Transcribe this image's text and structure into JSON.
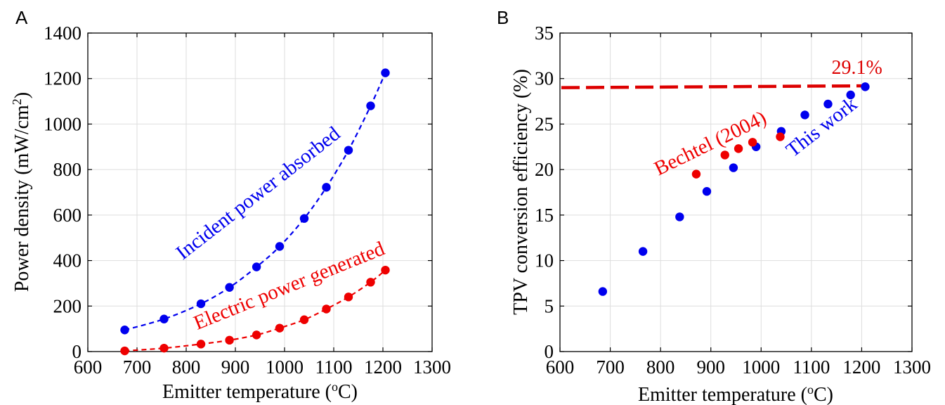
{
  "chart_data": [
    {
      "panel_label": "A",
      "type": "scatter",
      "xlabel_main": "Emitter temperature (",
      "xlabel_sup": "o",
      "xlabel_end": "C)",
      "ylabel_main": "Power density (mW/cm",
      "ylabel_sup": "2",
      "ylabel_end": ")",
      "xlim": [
        600,
        1300
      ],
      "ylim": [
        0,
        1400
      ],
      "xticks": [
        600,
        700,
        800,
        900,
        1000,
        1100,
        1200,
        1300
      ],
      "yticks": [
        0,
        200,
        400,
        600,
        800,
        1000,
        1200,
        1400
      ],
      "grid": true,
      "series": [
        {
          "name": "Incident power absorbed",
          "color": "#0000ee",
          "x": [
            675,
            755,
            830,
            888,
            943,
            990,
            1040,
            1085,
            1130,
            1175,
            1205
          ],
          "y": [
            95,
            143,
            210,
            282,
            372,
            462,
            585,
            722,
            885,
            1080,
            1225
          ]
        },
        {
          "name": "Electric power generated",
          "color": "#ee0000",
          "x": [
            675,
            755,
            830,
            888,
            943,
            990,
            1040,
            1085,
            1130,
            1175,
            1205
          ],
          "y": [
            3,
            15,
            33,
            50,
            73,
            103,
            140,
            187,
            240,
            305,
            358
          ]
        }
      ]
    },
    {
      "panel_label": "B",
      "type": "scatter",
      "xlabel_main": "Emitter temperature (",
      "xlabel_sup": "o",
      "xlabel_end": "C)",
      "ylabel_main": "TPV conversion efficiency (%)",
      "xlim": [
        600,
        1300
      ],
      "ylim": [
        0,
        35
      ],
      "xticks": [
        600,
        700,
        800,
        900,
        1000,
        1100,
        1200,
        1300
      ],
      "yticks": [
        0,
        5,
        10,
        15,
        20,
        25,
        30,
        35
      ],
      "grid": true,
      "reference_line": {
        "value": 29.1,
        "label": "29.1%",
        "color": "#dd0000"
      },
      "series": [
        {
          "name": "This work",
          "color": "#0000ee",
          "x": [
            685,
            765,
            838,
            892,
            945,
            990,
            1040,
            1087,
            1133,
            1178,
            1207
          ],
          "y": [
            6.6,
            11.0,
            14.8,
            17.6,
            20.2,
            22.5,
            24.2,
            26.0,
            27.2,
            28.2,
            29.1
          ]
        },
        {
          "name": "Bechtel (2004)",
          "color": "#ee0000",
          "x": [
            871,
            928,
            955,
            983,
            1038
          ],
          "y": [
            19.5,
            21.6,
            22.3,
            23.0,
            23.6
          ]
        }
      ]
    }
  ]
}
